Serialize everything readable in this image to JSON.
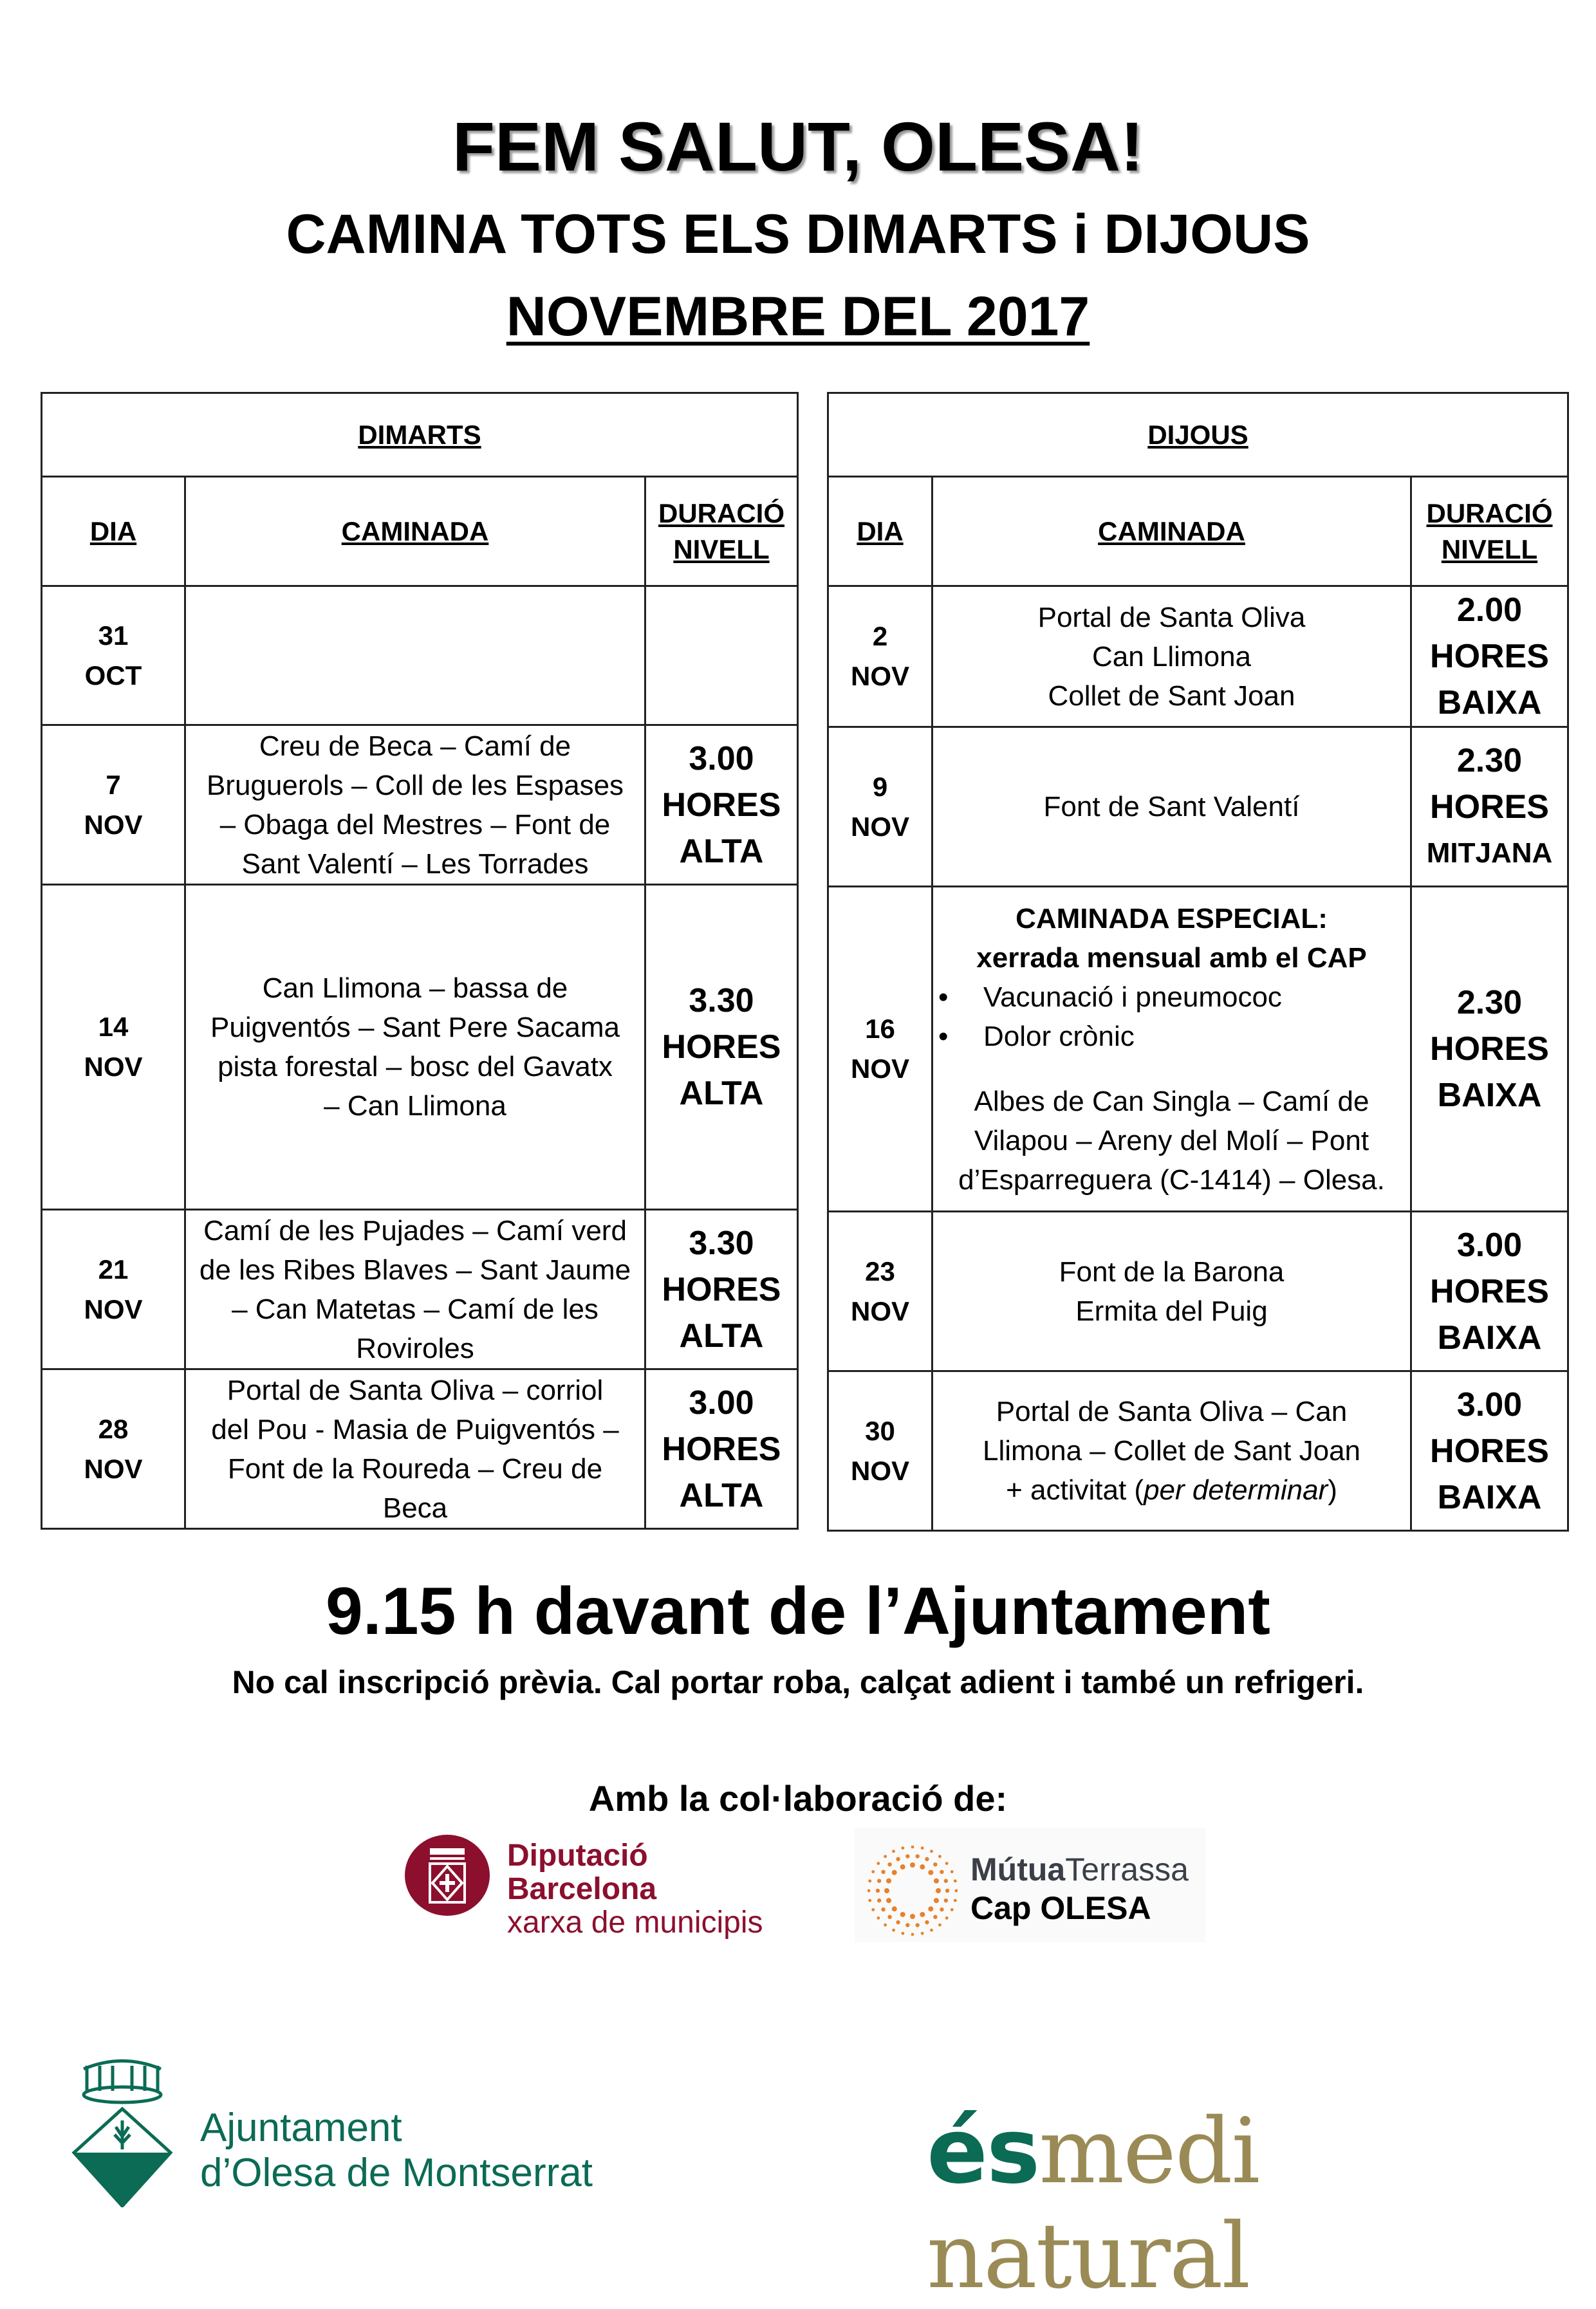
{
  "header": {
    "title": "FEM SALUT, OLESA!",
    "subtitle": "CAMINA TOTS ELS DIMARTS i DIJOUS",
    "month": "NOVEMBRE DEL 2017"
  },
  "columns": {
    "dia": "DIA",
    "caminada": "CAMINADA",
    "duracio": "DURACIÓ",
    "nivell": "NIVELL"
  },
  "tuesday": {
    "heading": "DIMARTS",
    "rows": [
      {
        "day": "31",
        "month": "OCT",
        "route": [],
        "hours": "",
        "unit": "",
        "level": ""
      },
      {
        "day": "7",
        "month": "NOV",
        "route": [
          "Creu de Beca – Camí de",
          "Bruguerols – Coll de les Espases",
          "– Obaga del Mestres – Font de",
          "Sant Valentí – Les Torrades"
        ],
        "hours": "3.00",
        "unit": "HORES",
        "level": "ALTA"
      },
      {
        "day": "14",
        "month": "NOV",
        "route": [
          "Can Llimona – bassa de",
          "Puigventós – Sant Pere Sacama",
          "pista forestal – bosc del Gavatx",
          "– Can Llimona"
        ],
        "hours": "3.30",
        "unit": "HORES",
        "level": "ALTA"
      },
      {
        "day": "21",
        "month": "NOV",
        "route": [
          "Camí de les Pujades – Camí verd",
          "de les Ribes Blaves – Sant Jaume",
          "– Can Matetas – Camí de les",
          "Roviroles"
        ],
        "hours": "3.30",
        "unit": "HORES",
        "level": "ALTA"
      },
      {
        "day": "28",
        "month": "NOV",
        "route": [
          "Portal de Santa Oliva – corriol",
          "del Pou - Masia de Puigventós –",
          "Font de la Roureda – Creu de",
          "Beca"
        ],
        "hours": "3.00",
        "unit": "HORES",
        "level": "ALTA"
      }
    ]
  },
  "thursday": {
    "heading": "DIJOUS",
    "rows": [
      {
        "day": "2",
        "month": "NOV",
        "route": [
          "Portal de Santa Oliva",
          "Can Llimona",
          "Collet de Sant Joan"
        ],
        "hours": "2.00",
        "unit": "HORES",
        "level": "BAIXA"
      },
      {
        "day": "9",
        "month": "NOV",
        "route": [
          "Font de Sant Valentí"
        ],
        "hours": "2.30",
        "unit": "HORES",
        "level": "MITJANA"
      },
      {
        "day": "16",
        "month": "NOV",
        "special_title": "CAMINADA ESPECIAL:",
        "special_subtitle": "xerrada mensual amb el CAP",
        "bullets": [
          "Vacunació i pneumococ",
          "Dolor crònic"
        ],
        "route": [
          "Albes de Can Singla – Camí de",
          "Vilapou – Areny del Molí – Pont",
          "d’Esparreguera (C-1414) – Olesa."
        ],
        "hours": "2.30",
        "unit": "HORES",
        "level": "BAIXA"
      },
      {
        "day": "23",
        "month": "NOV",
        "route": [
          "Font de la Barona",
          "Ermita del Puig"
        ],
        "hours": "3.00",
        "unit": "HORES",
        "level": "BAIXA"
      },
      {
        "day": "30",
        "month": "NOV",
        "route": [
          "Portal de Santa Oliva – Can",
          "Llimona – Collet de Sant Joan"
        ],
        "route_last_prefix": "+ activitat (",
        "route_last_italic": "per determinar",
        "route_last_suffix": ")",
        "hours": "3.00",
        "unit": "HORES",
        "level": "BAIXA"
      }
    ]
  },
  "footer": {
    "meeting": "9.15 h davant de l’Ajuntament",
    "note": "No cal inscripció prèvia. Cal portar roba, calçat adient i també un refrigeri.",
    "collab": "Amb la col·laboració de:",
    "dipu": [
      "Diputació",
      "Barcelona",
      "xarxa de municipis"
    ],
    "mutua_bold": "Mútua",
    "mutua_light": "Terrassa",
    "mutua_cap": "Cap OLESA",
    "ajuntament": [
      "Ajuntament",
      "d’Olesa de Montserrat"
    ],
    "esmedi_es": "és",
    "esmedi_rest": "medi natural"
  },
  "colors": {
    "dipu": "#8c0f2e",
    "mutua_orange": "#e8812a",
    "olesa_green": "#0b6b55",
    "esmedi_gold": "#9a8a55"
  }
}
